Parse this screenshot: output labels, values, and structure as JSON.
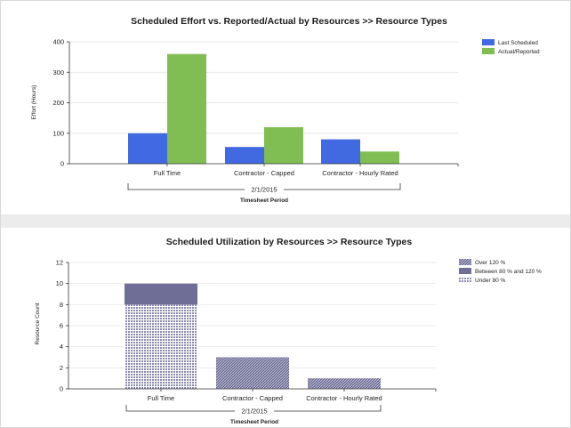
{
  "colors": {
    "last_scheduled": "#4169e1",
    "actual_reported": "#80bd52",
    "over_120": "#6e6e96",
    "between_80_120": "#6e6e96",
    "under_80": "#8b8bb0",
    "gridline": "#e0e0e0",
    "separator": "#ececec"
  },
  "chart_data": [
    {
      "type": "bar",
      "title": "Scheduled Effort vs. Reported/Actual by Resources >> Resource Types",
      "ylabel": "Effort (Hours)",
      "xlabel": "Timesheet Period",
      "group_label": "2/1/2015",
      "ylim": [
        0,
        400
      ],
      "yticks": [
        "0",
        "100",
        "200",
        "300",
        "400"
      ],
      "categories": [
        "Full Time",
        "Contractor - Capped",
        "Contractor - Hourly Rated"
      ],
      "series": [
        {
          "name": "Last Scheduled",
          "values": [
            100,
            55,
            80
          ]
        },
        {
          "name": "Actual/Reported",
          "values": [
            360,
            120,
            40
          ]
        }
      ],
      "grid": true,
      "legend": "top-right"
    },
    {
      "type": "bar",
      "stacked": true,
      "title": "Scheduled Utilization by Resources >> Resource Types",
      "ylabel": "Resource Count",
      "xlabel": "Timesheet Period",
      "group_label": "2/1/2015",
      "ylim": [
        0,
        12
      ],
      "yticks": [
        "0",
        "2",
        "4",
        "6",
        "8",
        "10",
        "12"
      ],
      "categories": [
        "Full Time",
        "Contractor - Capped",
        "Contractor - Hourly Rated"
      ],
      "series": [
        {
          "name": "Over 120 %",
          "values": [
            0,
            3,
            1
          ]
        },
        {
          "name": "Between 80 % and 120 %",
          "values": [
            2,
            0,
            0
          ]
        },
        {
          "name": "Under 80 %",
          "values": [
            8,
            0,
            0
          ]
        }
      ],
      "grid": true,
      "legend": "top-right"
    }
  ]
}
